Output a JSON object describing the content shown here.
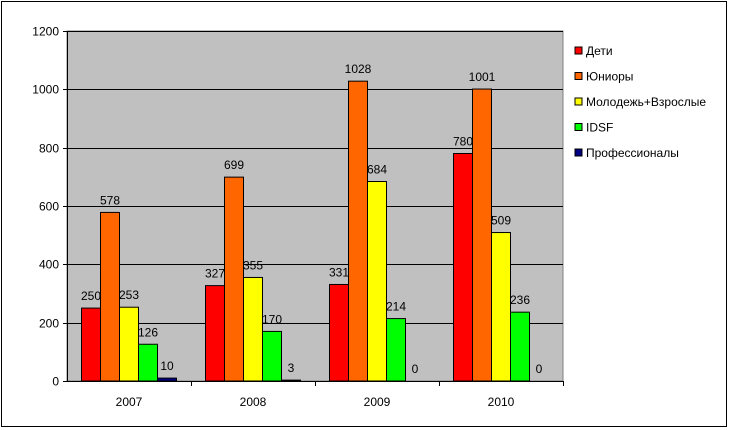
{
  "chart_data": {
    "type": "bar",
    "categories": [
      "2007",
      "2008",
      "2009",
      "2010"
    ],
    "ylim": [
      0,
      1200
    ],
    "yticks": [
      0,
      200,
      400,
      600,
      800,
      1000,
      1200
    ],
    "grid": true,
    "legend_position": "right",
    "plot_background": "#c0c0c0",
    "series": [
      {
        "name": "Дети",
        "color": "#ff0000",
        "values": [
          250,
          327,
          331,
          780
        ]
      },
      {
        "name": "Юниоры",
        "color": "#ff6600",
        "values": [
          578,
          699,
          1028,
          1001
        ]
      },
      {
        "name": "Молодежь+Взрослые",
        "color": "#ffff00",
        "values": [
          253,
          355,
          684,
          509
        ]
      },
      {
        "name": "IDSF",
        "color": "#00ff00",
        "values": [
          126,
          170,
          214,
          236
        ]
      },
      {
        "name": "Профессионалы",
        "color": "#000080",
        "values": [
          10,
          3,
          0,
          0
        ]
      }
    ]
  }
}
